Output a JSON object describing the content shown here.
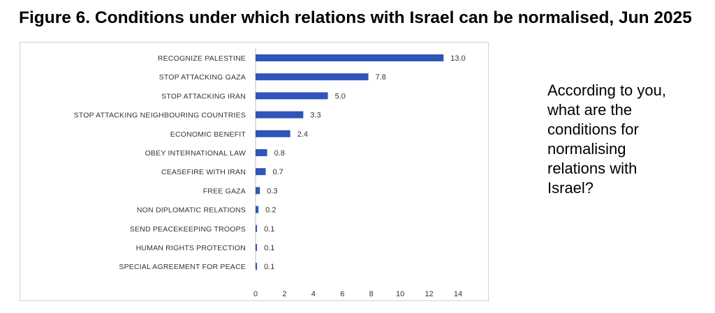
{
  "figure": {
    "title": "Figure 6. Conditions under which relations with Israel can be normalised, Jun 2025",
    "question": "According to you, what are the conditions for normalising relations with Israel?"
  },
  "colors": {
    "bar": "#2E55B8",
    "grid": "#d9d9d9",
    "axis": "#c0c0c0"
  },
  "chart_data": {
    "type": "bar",
    "orientation": "horizontal",
    "categories": [
      "RECOGNIZE PALESTINE",
      "STOP ATTACKING GAZA",
      "STOP ATTACKING IRAN",
      "STOP ATTACKING NEIGHBOURING COUNTRIES",
      "ECONOMIC BENEFIT",
      "OBEY INTERNATIONAL LAW",
      "CEASEFIRE WITH IRAN",
      "FREE GAZA",
      "NON DIPLOMATIC RELATIONS",
      "SEND PEACEKEEPING TROOPS",
      "HUMAN RIGHTS PROTECTION",
      "SPECIAL AGREEMENT FOR PEACE"
    ],
    "values": [
      13.0,
      7.8,
      5.0,
      3.3,
      2.4,
      0.8,
      0.7,
      0.3,
      0.2,
      0.1,
      0.1,
      0.1
    ],
    "value_labels": [
      "13.0",
      "7.8",
      "5.0",
      "3.3",
      "2.4",
      "0.8",
      "0.7",
      "0.3",
      "0.2",
      "0.1",
      "0.1",
      "0.1"
    ],
    "x_ticks": [
      0,
      2,
      4,
      6,
      8,
      10,
      12,
      14
    ],
    "xlim": [
      0,
      14
    ],
    "grid": false,
    "legend": "none"
  }
}
